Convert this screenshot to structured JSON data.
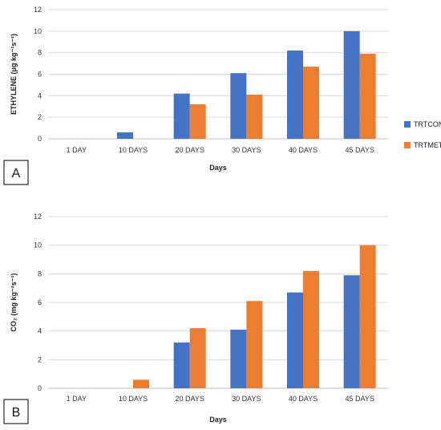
{
  "chart_data": [
    {
      "type": "bar",
      "panel_label": "A",
      "categories": [
        "1 DAY",
        "10 DAYS",
        "20 DAYS",
        "30 DAYS",
        "40 DAYS",
        "45 DAYS"
      ],
      "series": [
        {
          "name": "TRTCON",
          "values": [
            0,
            0.6,
            4.2,
            6.1,
            8.2,
            10.0
          ]
        },
        {
          "name": "TRTMET",
          "values": [
            0,
            0,
            3.2,
            4.1,
            6.7,
            7.9
          ]
        }
      ],
      "xlabel": "Days",
      "ylabel": "ETHYLENE (μg kg⁻¹s⁻¹)",
      "ylim": [
        0,
        12
      ],
      "yticks": [
        0,
        2,
        4,
        6,
        8,
        10,
        12
      ],
      "grid": "horizontal",
      "legend": "right"
    },
    {
      "type": "bar",
      "panel_label": "B",
      "categories": [
        "1 DAY",
        "10 DAYS",
        "20 DAYS",
        "30 DAYS",
        "40 DAYS",
        "45 DAYS"
      ],
      "series": [
        {
          "values": [
            0,
            0,
            3.2,
            4.1,
            6.7,
            7.9
          ]
        },
        {
          "values": [
            0,
            0.6,
            4.2,
            6.1,
            8.2,
            10.0
          ]
        }
      ],
      "xlabel": "Days",
      "ylabel": "CO₂ (mg kg⁻¹s⁻¹)",
      "ylim": [
        0,
        12
      ],
      "yticks": [
        0,
        2,
        4,
        6,
        8,
        10,
        12
      ],
      "grid": "horizontal",
      "legend": "none"
    }
  ],
  "colors": {
    "series_1": "#4472C4",
    "series_2": "#ED7D31",
    "grid": "#D9D9D9",
    "axis": "#BFBFBF"
  }
}
